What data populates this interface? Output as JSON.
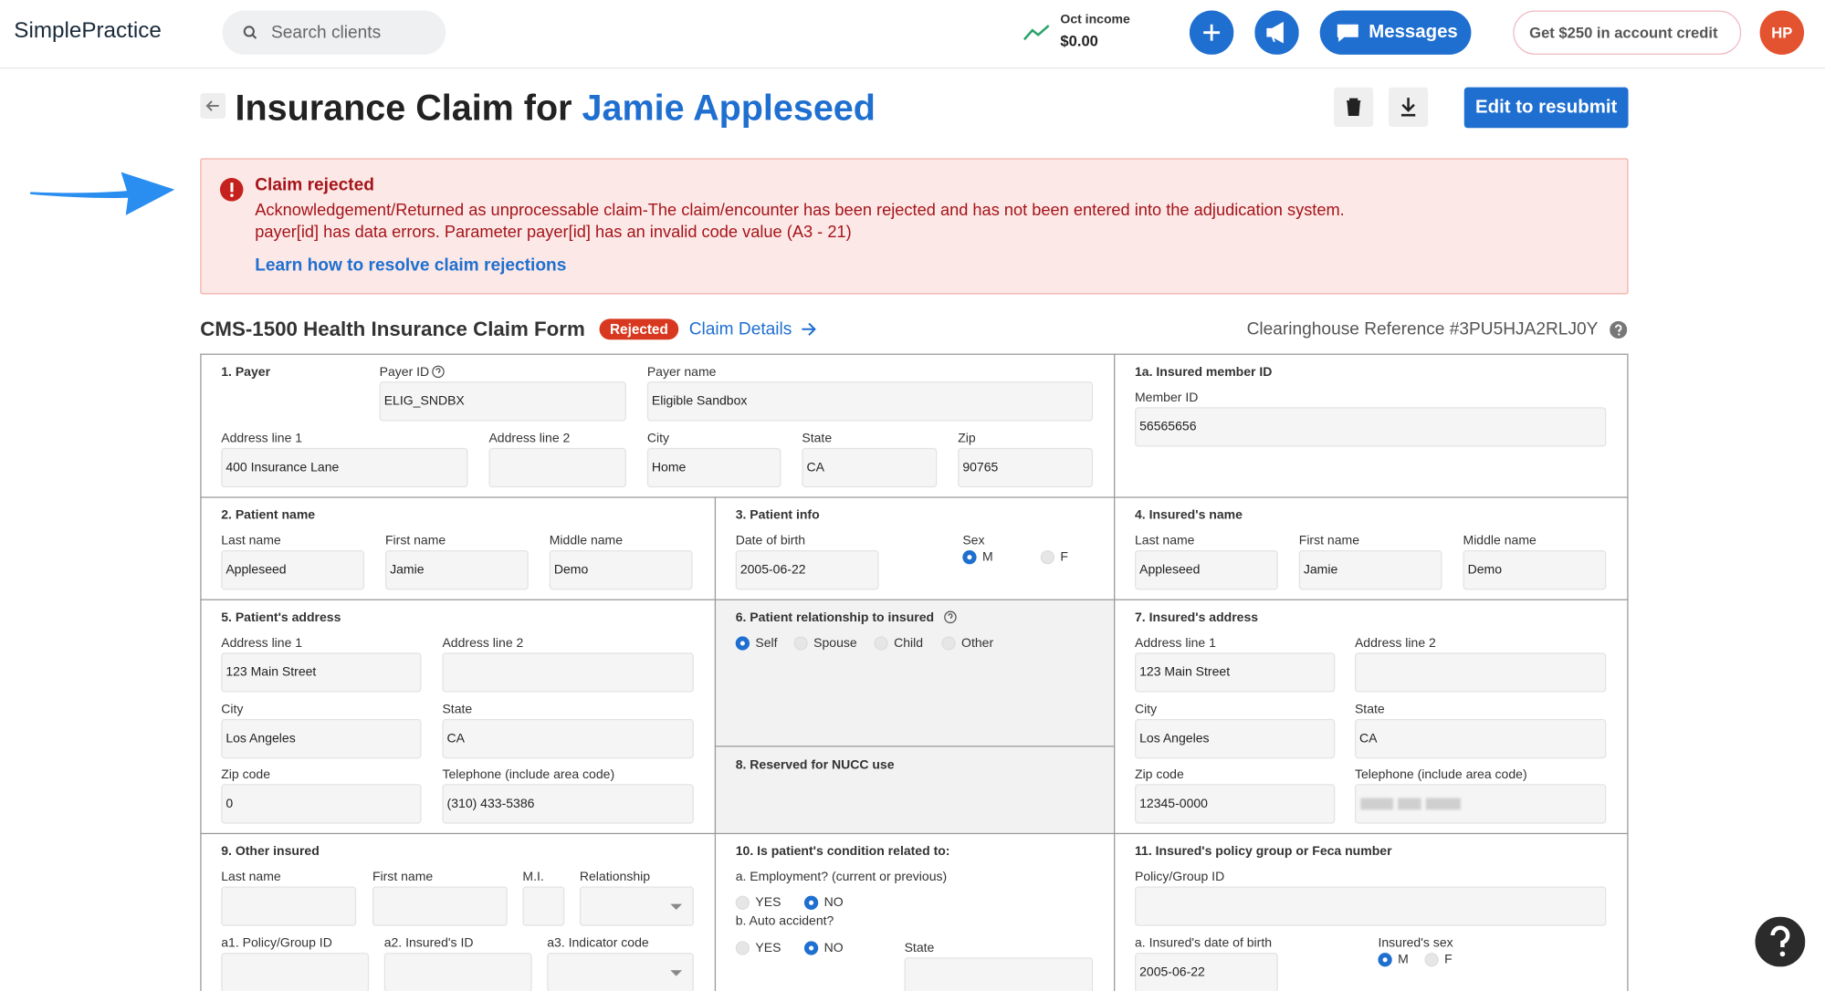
{
  "header": {
    "logo": "SimplePractice",
    "search_placeholder": "Search clients",
    "income_label": "Oct income",
    "income_value": "$0.00",
    "messages": "Messages",
    "credit": "Get $250 in account credit",
    "avatar": "HP"
  },
  "page": {
    "title_prefix": "Insurance Claim for",
    "client_name": "Jamie Appleseed",
    "resubmit": "Edit to resubmit"
  },
  "alert": {
    "title": "Claim rejected",
    "line1": "Acknowledgement/Returned as unprocessable claim-The claim/encounter has been rejected and has not been entered into the adjudication system.",
    "line2": "payer[id] has data errors. Parameter payer[id] has an invalid code value (A3 - 21)",
    "link": "Learn how to resolve claim rejections"
  },
  "form": {
    "title": "CMS-1500 Health Insurance Claim Form",
    "status": "Rejected",
    "details_link": "Claim Details",
    "reference": "Clearinghouse Reference #3PU5HJA2RLJ0Y",
    "sections": [
      {
        "title": "1. Payer",
        "fields": [
          {
            "label": "Payer ID",
            "value": "ELIG_SNDBX"
          },
          {
            "label": "Payer name",
            "value": "Eligible Sandbox"
          },
          {
            "label": "Address line 1",
            "value": "400 Insurance Lane"
          },
          {
            "label": "Address line 2"
          },
          {
            "label": "City",
            "value": "Home"
          },
          {
            "label": "State",
            "value": "CA"
          },
          {
            "label": "Zip",
            "value": "90765"
          }
        ]
      },
      {
        "title": "1a. Insured member ID",
        "fields": [
          {
            "label": "Member ID",
            "value": "56565656"
          }
        ]
      },
      {
        "title": "2. Patient name",
        "fields": [
          {
            "label": "Last name",
            "value": "Appleseed"
          },
          {
            "label": "First name",
            "value": "Jamie"
          },
          {
            "label": "Middle name",
            "value": "Demo"
          }
        ]
      },
      {
        "title": "3. Patient info",
        "fields": [
          {
            "label": "Date of birth",
            "value": "2005-06-22"
          }
        ],
        "radio_groups": [
          {
            "label": "Sex",
            "options": [
              {
                "label": "M",
                "checked": true
              },
              {
                "label": "F",
                "checked": false
              }
            ]
          }
        ]
      },
      {
        "title": "4. Insured's name",
        "fields": [
          {
            "label": "Last name",
            "value": "Appleseed"
          },
          {
            "label": "First name",
            "value": "Jamie"
          },
          {
            "label": "Middle name",
            "value": "Demo"
          }
        ]
      },
      {
        "title": "5. Patient's address",
        "fields": [
          {
            "label": "Address line 1",
            "value": "123 Main Street"
          },
          {
            "label": "Address line 2"
          },
          {
            "label": "City",
            "value": "Los Angeles"
          },
          {
            "label": "State",
            "value": "CA"
          },
          {
            "label": "Zip code",
            "value": "0"
          },
          {
            "label": "Telephone (include area code)",
            "value": "(310) 433-5386"
          }
        ]
      },
      {
        "title": "6. Patient relationship to insured",
        "radio_groups": [
          {
            "options": [
              {
                "label": "Self",
                "checked": true
              },
              {
                "label": "Spouse",
                "checked": false
              },
              {
                "label": "Child",
                "checked": false
              },
              {
                "label": "Other",
                "checked": false
              }
            ]
          }
        ]
      },
      {
        "title": "7. Insured's address",
        "fields": [
          {
            "label": "Address line 1",
            "value": "123 Main Street"
          },
          {
            "label": "Address line 2"
          },
          {
            "label": "City",
            "value": "Los Angeles"
          },
          {
            "label": "State",
            "value": "CA"
          },
          {
            "label": "Zip code",
            "value": "12345-0000"
          },
          {
            "label": "Telephone (include area code)"
          }
        ]
      },
      {
        "title": "8. Reserved for NUCC use"
      },
      {
        "title": "9. Other insured",
        "fields": [
          {
            "label": "Last name"
          },
          {
            "label": "First name"
          },
          {
            "label": "M.I."
          },
          {
            "label": "Relationship"
          },
          {
            "label": "a1. Policy/Group ID"
          },
          {
            "label": "a2. Insured's ID"
          },
          {
            "label": "a3. Indicator code"
          }
        ]
      },
      {
        "title": "10. Is patient's condition related to:",
        "fields": [
          {
            "label": "State"
          }
        ],
        "radio_groups": [
          {
            "label": "a. Employment? (current or previous)",
            "options": [
              {
                "label": "YES",
                "checked": false
              },
              {
                "label": "NO",
                "checked": true
              }
            ]
          },
          {
            "label": "b. Auto accident?",
            "options": [
              {
                "label": "YES",
                "checked": false
              },
              {
                "label": "NO",
                "checked": true
              }
            ]
          }
        ]
      },
      {
        "title": "11. Insured's policy group or Feca number",
        "fields": [
          {
            "label": "Policy/Group ID"
          },
          {
            "label": "a. Insured's date of birth",
            "value": "2005-06-22"
          }
        ],
        "radio_groups": [
          {
            "label": "Insured's sex",
            "options": [
              {
                "label": "M",
                "checked": true
              },
              {
                "label": "F",
                "checked": false
              }
            ]
          }
        ]
      }
    ]
  }
}
